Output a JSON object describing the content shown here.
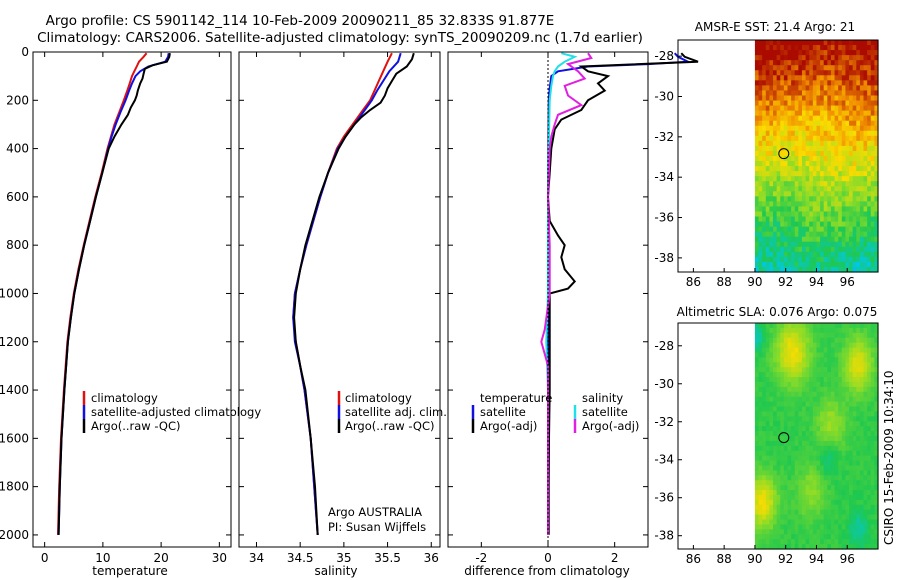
{
  "figure": {
    "title_line1": "Argo profile: CS 5901142_114 10-Feb-2009 20090211_85 32.833S 91.877E",
    "title_line2": "Climatology: CARS2006. Satellite-adjusted climatology: synTS_20090209.nc (1.7d earlier)",
    "credit": "CSIRO 15-Feb-2009 10:34:10",
    "argo_label": "Argo AUSTRALIA",
    "pi_label": "PI: Susan Wijffels"
  },
  "colors": {
    "climatology": "#e01010",
    "satellite": "#1010e0",
    "argo": "#000000",
    "sal_satellite": "#20e0e8",
    "sal_argo": "#e020e0"
  },
  "chart_data": [
    {
      "id": "temperature",
      "type": "line",
      "xlabel": "temperature",
      "ylabel": "",
      "xlim": [
        -2,
        32
      ],
      "ylim": [
        2050,
        0
      ],
      "xticks": [
        0,
        10,
        20,
        30
      ],
      "yticks": [
        0,
        200,
        400,
        600,
        800,
        1000,
        1200,
        1400,
        1600,
        1800,
        2000
      ],
      "legend": [
        "climatology",
        "satellite-adjusted climatology",
        "Argo(..raw -QC)"
      ],
      "series": [
        {
          "name": "climatology",
          "color": "climatology",
          "depth": [
            5,
            20,
            40,
            60,
            80,
            100,
            130,
            160,
            200,
            250,
            300,
            350,
            400,
            500,
            600,
            700,
            800,
            900,
            1000,
            1100,
            1200,
            1400,
            1600,
            1800,
            2000
          ],
          "values": [
            17.5,
            17.0,
            16.2,
            15.8,
            15.4,
            15.0,
            14.6,
            14.2,
            13.6,
            12.8,
            12.0,
            11.4,
            10.8,
            9.8,
            8.7,
            7.7,
            6.7,
            5.8,
            5.0,
            4.4,
            3.9,
            3.3,
            2.8,
            2.5,
            2.3
          ]
        },
        {
          "name": "satellite",
          "color": "satellite",
          "depth": [
            5,
            20,
            40,
            60,
            80,
            100,
            130,
            160,
            200,
            250,
            300,
            350,
            400,
            500,
            600,
            700,
            800,
            900,
            1000,
            1100,
            1200,
            1400,
            1600,
            1800,
            2000
          ],
          "values": [
            21.3,
            21.2,
            20.7,
            17.8,
            16.4,
            15.6,
            15.0,
            14.5,
            13.9,
            13.0,
            12.2,
            11.5,
            10.9,
            9.9,
            8.8,
            7.8,
            6.8,
            5.9,
            5.1,
            4.5,
            4.0,
            3.4,
            2.9,
            2.6,
            2.4
          ]
        },
        {
          "name": "Argo",
          "color": "argo",
          "depth": [
            5,
            20,
            40,
            55,
            70,
            90,
            110,
            130,
            160,
            180,
            200,
            230,
            260,
            300,
            350,
            400,
            500,
            600,
            700,
            800,
            900,
            1000,
            1100,
            1200,
            1400,
            1600,
            1800,
            2000
          ],
          "values": [
            21.5,
            21.4,
            21.0,
            18.5,
            17.2,
            17.0,
            16.8,
            16.4,
            16.0,
            15.8,
            15.5,
            14.8,
            14.3,
            13.2,
            12.0,
            11.0,
            9.9,
            8.8,
            7.8,
            6.8,
            5.9,
            5.1,
            4.5,
            4.0,
            3.4,
            2.9,
            2.6,
            2.4
          ]
        }
      ]
    },
    {
      "id": "salinity",
      "type": "line",
      "xlabel": "salinity",
      "xlim": [
        33.8,
        36.1
      ],
      "ylim": [
        2050,
        0
      ],
      "xticks": [
        34,
        34.5,
        35,
        35.5,
        36
      ],
      "legend": [
        "climatology",
        "satellite adj. clim.",
        "Argo(..raw -QC)"
      ],
      "series": [
        {
          "name": "climatology",
          "color": "climatology",
          "depth": [
            5,
            40,
            80,
            120,
            160,
            200,
            250,
            300,
            350,
            400,
            500,
            600,
            700,
            800,
            900,
            1000,
            1100,
            1200,
            1300,
            1400,
            1600,
            1800,
            2000
          ],
          "values": [
            35.55,
            35.5,
            35.45,
            35.4,
            35.35,
            35.3,
            35.2,
            35.1,
            35.0,
            34.92,
            34.82,
            34.73,
            34.65,
            34.57,
            34.5,
            34.44,
            34.42,
            34.45,
            34.5,
            34.55,
            34.62,
            34.66,
            34.7
          ]
        },
        {
          "name": "satellite",
          "color": "satellite",
          "depth": [
            5,
            40,
            80,
            120,
            160,
            200,
            250,
            300,
            350,
            400,
            500,
            600,
            700,
            800,
            900,
            1000,
            1100,
            1200,
            1300,
            1400,
            1600,
            1800,
            2000
          ],
          "values": [
            35.65,
            35.62,
            35.52,
            35.45,
            35.38,
            35.32,
            35.22,
            35.12,
            35.02,
            34.93,
            34.82,
            34.73,
            34.65,
            34.57,
            34.5,
            34.44,
            34.42,
            34.44,
            34.5,
            34.55,
            34.62,
            34.66,
            34.7
          ]
        },
        {
          "name": "Argo",
          "color": "argo",
          "depth": [
            5,
            30,
            60,
            90,
            120,
            150,
            180,
            210,
            240,
            270,
            300,
            350,
            400,
            500,
            600,
            700,
            800,
            900,
            1000,
            1100,
            1200,
            1300,
            1400,
            1600,
            1800,
            2000
          ],
          "values": [
            35.8,
            35.78,
            35.72,
            35.6,
            35.55,
            35.5,
            35.47,
            35.42,
            35.3,
            35.2,
            35.12,
            35.02,
            34.94,
            34.82,
            34.72,
            34.64,
            34.56,
            34.5,
            34.45,
            34.43,
            34.45,
            34.5,
            34.56,
            34.62,
            34.67,
            34.7
          ]
        }
      ]
    },
    {
      "id": "difference",
      "type": "line",
      "xlabel": "difference from climatology",
      "xlim": [
        -3,
        3
      ],
      "ylim": [
        2050,
        0
      ],
      "xticks": [
        -2,
        0,
        2
      ],
      "legend_left_title": "temperature",
      "legend_right_title": "salinity",
      "legend_left": [
        "satellite",
        "Argo(-adj)"
      ],
      "legend_right": [
        "satellite",
        "Argo(-adj)"
      ],
      "series": [
        {
          "name": "temperature satellite",
          "color": "satellite",
          "depth": [
            5,
            20,
            40,
            50,
            60,
            80,
            100,
            150,
            200,
            400,
            600,
            800,
            1000,
            1200,
            1400,
            1600,
            1800,
            2000
          ],
          "values": [
            3.8,
            3.9,
            4.2,
            3.0,
            1.2,
            0.3,
            0.1,
            0.05,
            0.02,
            0.01,
            0.0,
            0.0,
            0.0,
            0.0,
            0.0,
            0.0,
            0.0,
            0.0
          ]
        },
        {
          "name": "temperature Argo",
          "color": "argo",
          "depth": [
            5,
            20,
            40,
            60,
            80,
            100,
            130,
            160,
            200,
            240,
            280,
            320,
            360,
            400,
            500,
            600,
            700,
            760,
            800,
            850,
            900,
            950,
            980,
            1000,
            1100,
            1200,
            1400,
            1600,
            1800,
            2000
          ],
          "values": [
            4.0,
            4.1,
            4.5,
            1.0,
            1.2,
            1.8,
            1.5,
            1.7,
            1.2,
            1.0,
            0.4,
            0.2,
            0.15,
            0.1,
            0.05,
            0.0,
            0.05,
            0.3,
            0.5,
            0.4,
            0.5,
            0.8,
            0.6,
            0.05,
            0.05,
            0.05,
            0.05,
            0.03,
            0.02,
            0.02
          ]
        },
        {
          "name": "salinity satellite",
          "color": "sal_satellite",
          "depth": [
            5,
            20,
            40,
            60,
            80,
            100,
            140,
            200,
            400,
            600,
            800,
            1000,
            1200,
            1400,
            1600,
            1800,
            2000
          ],
          "values": [
            0.4,
            0.8,
            0.5,
            0.3,
            0.2,
            0.15,
            0.1,
            0.05,
            0.02,
            0.0,
            0.0,
            0.0,
            -0.05,
            0.0,
            0.0,
            0.0,
            0.0
          ]
        },
        {
          "name": "salinity Argo",
          "color": "sal_argo",
          "depth": [
            5,
            25,
            50,
            80,
            110,
            140,
            180,
            220,
            260,
            300,
            350,
            400,
            600,
            800,
            1000,
            1150,
            1200,
            1250,
            1300,
            1400,
            1600,
            1800,
            2000
          ],
          "values": [
            1.2,
            1.3,
            0.6,
            0.9,
            1.1,
            0.5,
            0.6,
            1.0,
            0.3,
            0.2,
            0.1,
            0.05,
            0.0,
            0.05,
            0.05,
            -0.1,
            -0.2,
            -0.1,
            0.0,
            0.0,
            0.0,
            0.0,
            0.0
          ]
        }
      ]
    },
    {
      "id": "sst_map",
      "type": "heatmap",
      "title": "AMSR-E SST: 21.4  Argo: 21",
      "xlim": [
        85,
        98
      ],
      "ylim": [
        -38.7,
        -27.2
      ],
      "xticks": [
        86,
        88,
        90,
        92,
        94,
        96
      ],
      "yticks": [
        -28,
        -30,
        -32,
        -34,
        -36,
        -38
      ],
      "data_xlim": [
        90,
        98
      ],
      "profile_location": {
        "lon": 91.877,
        "lat": -32.833
      }
    },
    {
      "id": "sla_map",
      "type": "heatmap",
      "title": "Altimetric SLA: 0.076  Argo: 0.075",
      "xlim": [
        85,
        98
      ],
      "ylim": [
        -38.7,
        -26.8
      ],
      "xticks": [
        86,
        88,
        90,
        92,
        94,
        96
      ],
      "yticks": [
        -28,
        -30,
        -32,
        -34,
        -36,
        -38
      ],
      "data_xlim": [
        90,
        98
      ],
      "profile_location": {
        "lon": 91.877,
        "lat": -32.833
      }
    }
  ]
}
